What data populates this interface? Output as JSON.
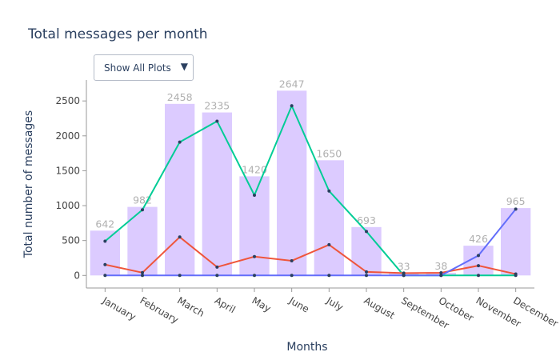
{
  "header": {
    "title": "Total messages per month"
  },
  "dropdown": {
    "selected": "Show All Plots",
    "caret": "▼"
  },
  "colors": {
    "bars": "#dccbff",
    "s1": "#00cc96",
    "s2": "#ef553b",
    "s3": "#636efa"
  },
  "chart_data": {
    "type": "bar",
    "title": "Total messages per month",
    "xlabel": "Months",
    "ylabel": "Total number of messages",
    "ylim": [
      -180,
      2800
    ],
    "yticks": [
      0,
      500,
      1000,
      1500,
      2000,
      2500
    ],
    "categories": [
      "January",
      "February",
      "March",
      "April",
      "May",
      "June",
      "July",
      "August",
      "September",
      "October",
      "November",
      "December"
    ],
    "values": [
      642,
      982,
      2458,
      2335,
      1420,
      2647,
      1650,
      693,
      33,
      38,
      426,
      965
    ],
    "series": [
      {
        "type": "line",
        "values": [
          490,
          940,
          1910,
          2210,
          1150,
          2430,
          1210,
          630,
          0,
          0,
          0,
          0
        ]
      },
      {
        "type": "line",
        "values": [
          155,
          40,
          550,
          120,
          270,
          210,
          440,
          50,
          33,
          38,
          140,
          20
        ]
      },
      {
        "type": "line",
        "values": [
          0,
          0,
          0,
          0,
          0,
          0,
          0,
          0,
          0,
          0,
          285,
          950
        ]
      }
    ]
  }
}
